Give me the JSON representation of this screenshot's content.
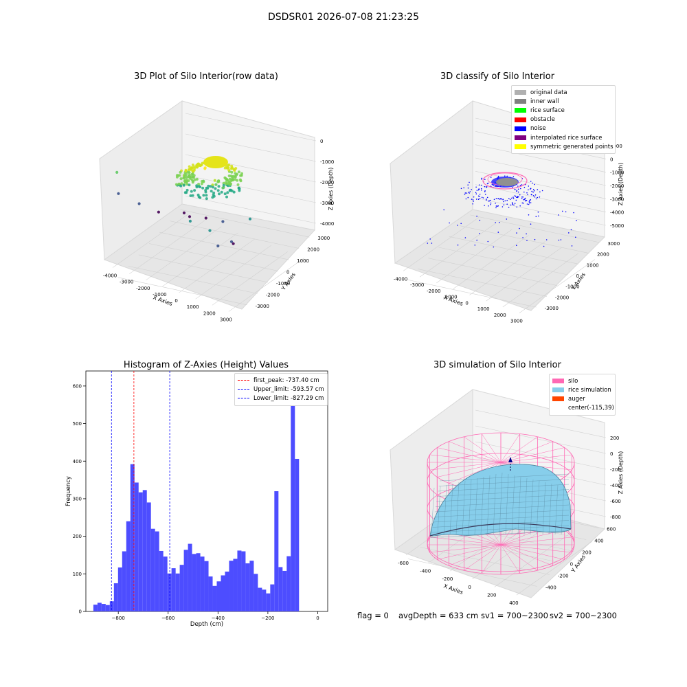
{
  "figure": {
    "suptitle": "DSDSR01 2026-07-08 21:23:25",
    "footer": {
      "flag": "flag = 0",
      "avg_depth": "avgDepth = 633 cm",
      "sv1": "sv1 = 700~2300",
      "sv2": "sv2 = 700~2300"
    }
  },
  "chart_data": [
    {
      "type": "scatter",
      "projection": "3d",
      "title": "3D Plot of Silo Interior(row data)",
      "xlabel": "X Axies",
      "ylabel": "Y Axies",
      "zlabel": "Z Axies (Depth)",
      "xticks": [
        "-4000",
        "-3000",
        "-2000",
        "-1000",
        "0",
        "1000",
        "2000",
        "3000"
      ],
      "yticks": [
        "-3000",
        "-2000",
        "-1000",
        "0",
        "1000",
        "2000",
        "3000"
      ],
      "zticks": [
        "0",
        "-1000",
        "-2000",
        "-3000",
        "-4000"
      ],
      "colormap": "viridis",
      "points": [
        {
          "x": 0,
          "y": 400,
          "z": -600
        },
        {
          "x": 200,
          "y": 300,
          "z": -700
        },
        {
          "x": -200,
          "y": 300,
          "z": -700
        },
        {
          "x": 100,
          "y": 200,
          "z": -800
        },
        {
          "x": 700,
          "y": 200,
          "z": -1300
        },
        {
          "x": -700,
          "y": 100,
          "z": -1300
        },
        {
          "x": 800,
          "y": -300,
          "z": -1800
        },
        {
          "x": -900,
          "y": 500,
          "z": -1500
        },
        {
          "x": 500,
          "y": -600,
          "z": -2000
        },
        {
          "x": -500,
          "y": -400,
          "z": -1900
        },
        {
          "x": 0,
          "y": -700,
          "z": -2000
        },
        {
          "x": 900,
          "y": 600,
          "z": -1400
        },
        {
          "x": -3500,
          "y": 2200,
          "z": -1800
        },
        {
          "x": -4000,
          "y": 1500,
          "z": -3400
        },
        {
          "x": -3600,
          "y": 500,
          "z": -4100
        },
        {
          "x": -2600,
          "y": 300,
          "z": -4300
        },
        {
          "x": -2000,
          "y": -800,
          "z": -4400
        },
        {
          "x": -1500,
          "y": -600,
          "z": -4400
        },
        {
          "x": -600,
          "y": -700,
          "z": -4200
        },
        {
          "x": 500,
          "y": -600,
          "z": -4000
        },
        {
          "x": 2400,
          "y": 900,
          "z": -4300
        },
        {
          "x": 2800,
          "y": 1500,
          "z": -3900
        },
        {
          "x": 3000,
          "y": 2700,
          "z": -3800
        },
        {
          "x": 2600,
          "y": 2800,
          "z": -3000
        },
        {
          "x": 1500,
          "y": 2900,
          "z": -2800
        },
        {
          "x": 2900,
          "y": 300,
          "z": -2800
        }
      ]
    },
    {
      "type": "scatter",
      "projection": "3d",
      "title": "3D classify of Silo Interior",
      "xlabel": "X Axies",
      "ylabel": "Y Axies",
      "zlabel": "Z Axies (Depth)",
      "xticks": [
        "-4000",
        "-3000",
        "-2000",
        "-1000",
        "0",
        "1000",
        "2000",
        "3000"
      ],
      "yticks": [
        "-3000",
        "-2000",
        "-1000",
        "0",
        "1000",
        "2000",
        "3000"
      ],
      "zticks": [
        "1000",
        "0",
        "-1000",
        "-2000",
        "-3000",
        "-4000",
        "-5000"
      ],
      "legend": [
        {
          "label": "original data",
          "color": "#b0b0b0"
        },
        {
          "label": "inner wall",
          "color": "#808080"
        },
        {
          "label": "rice surface",
          "color": "#00ff00"
        },
        {
          "label": "obstacle",
          "color": "#ff0000"
        },
        {
          "label": "noise",
          "color": "#0000ff"
        },
        {
          "label": "interpolated rice surface",
          "color": "#800080"
        },
        {
          "label": "symmetric generated points",
          "color": "#ffff00"
        }
      ]
    },
    {
      "type": "bar",
      "title": "Histogram of Z-Axies (Height) Values",
      "xlabel": "Depth (cm)",
      "ylabel": "Frequency",
      "xlim": [
        -930,
        40
      ],
      "ylim": [
        0,
        640
      ],
      "xticks": [
        -800,
        -600,
        -400,
        -200,
        0
      ],
      "xtick_labels": [
        "−800",
        "−600",
        "−400",
        "−200",
        "0"
      ],
      "yticks": [
        0,
        100,
        200,
        300,
        400,
        500,
        600
      ],
      "bar_color": "#4d4dff",
      "bin_start": -900,
      "bin_width": 16.5,
      "values": [
        18,
        23,
        20,
        17,
        27,
        75,
        117,
        160,
        240,
        392,
        343,
        317,
        323,
        290,
        220,
        213,
        161,
        146,
        101,
        115,
        101,
        124,
        164,
        180,
        153,
        155,
        146,
        134,
        93,
        68,
        80,
        96,
        106,
        135,
        140,
        162,
        160,
        128,
        135,
        100,
        63,
        58,
        48,
        72,
        320,
        118,
        108,
        147,
        610,
        406
      ],
      "vlines": [
        {
          "label": "first_peak: -737.40 cm",
          "x": -737.4,
          "color": "#ff0000"
        },
        {
          "label": "Upper_limit: -593.57 cm",
          "x": -593.57,
          "color": "#0000ff"
        },
        {
          "label": "Lower_limit: -827.29 cm",
          "x": -827.29,
          "color": "#0000ff"
        }
      ]
    },
    {
      "type": "surface",
      "projection": "3d",
      "title": "3D simulation of Silo Interior",
      "xlabel": "X Axies",
      "ylabel": "Y Axies",
      "zlabel": "Z Axies (Depth)",
      "xticks": [
        "-600",
        "-400",
        "-200",
        "0",
        "200",
        "400"
      ],
      "yticks": [
        "-400",
        "-200",
        "0",
        "200",
        "400",
        "600"
      ],
      "zticks": [
        "200",
        "0",
        "-200",
        "-400",
        "-600",
        "-800"
      ],
      "legend": [
        {
          "label": "silo",
          "color": "#ff69b4"
        },
        {
          "label": "rice simulation",
          "color": "#87ceeb"
        },
        {
          "label": "auger",
          "color": "#ff4500"
        },
        {
          "label": "center(-115,39)",
          "color": ""
        }
      ]
    }
  ]
}
